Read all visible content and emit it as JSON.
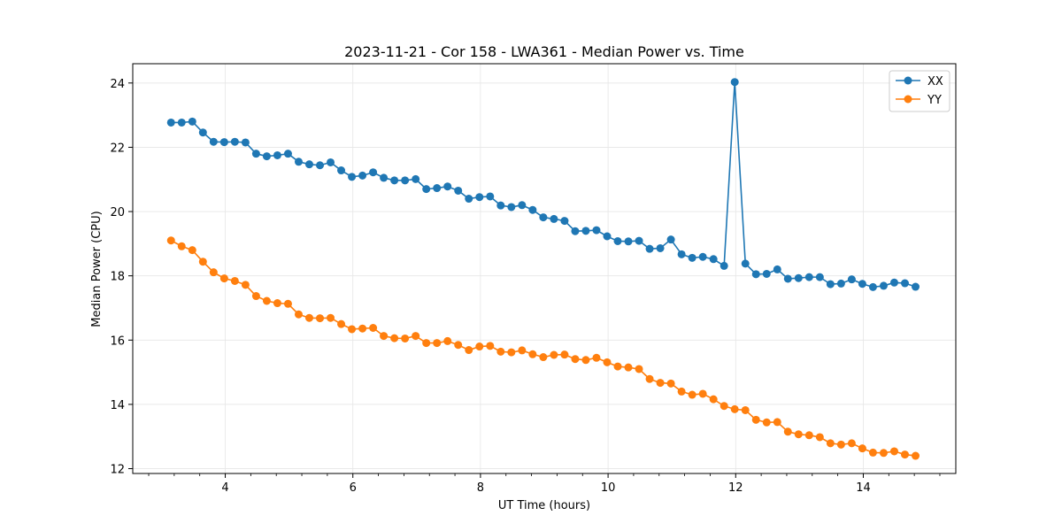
{
  "chart_data": {
    "type": "line",
    "title": "2023-11-21 - Cor 158 - LWA361 - Median Power vs. Time",
    "xlabel": "UT Time (hours)",
    "ylabel": "Median Power (CPU)",
    "xlim": [
      2.55,
      15.45
    ],
    "ylim": [
      11.85,
      24.6
    ],
    "xticks": [
      4,
      6,
      8,
      10,
      12,
      14
    ],
    "xtick_labels": [
      "4",
      "6",
      "8",
      "10",
      "12",
      "14"
    ],
    "yticks": [
      12,
      14,
      16,
      18,
      20,
      22,
      24
    ],
    "ytick_labels": [
      "12",
      "14",
      "16",
      "18",
      "20",
      "22",
      "24"
    ],
    "x_minor_step": 0.4,
    "grid": true,
    "legend_position": "top-right",
    "x_start": 3.15,
    "x_step": 0.1667,
    "series": [
      {
        "name": "XX",
        "color": "#1f77b4",
        "values": [
          22.77,
          22.77,
          22.8,
          22.46,
          22.17,
          22.16,
          22.17,
          22.15,
          21.8,
          21.72,
          21.75,
          21.8,
          21.55,
          21.47,
          21.44,
          21.53,
          21.28,
          21.08,
          21.12,
          21.22,
          21.05,
          20.97,
          20.97,
          21.01,
          20.7,
          20.73,
          20.78,
          20.65,
          20.4,
          20.45,
          20.47,
          20.19,
          20.14,
          20.2,
          20.05,
          19.82,
          19.77,
          19.71,
          19.39,
          19.4,
          19.42,
          19.23,
          19.08,
          19.07,
          19.09,
          18.84,
          18.86,
          19.13,
          18.67,
          18.56,
          18.59,
          18.52,
          18.31,
          24.03,
          18.38,
          18.05,
          18.06,
          18.2,
          17.91,
          17.93,
          17.96,
          17.96,
          17.74,
          17.76,
          17.89,
          17.75,
          17.65,
          17.69,
          17.79,
          17.77,
          17.66
        ]
      },
      {
        "name": "YY",
        "color": "#ff7f0e",
        "values": [
          19.1,
          18.92,
          18.8,
          18.44,
          18.11,
          17.92,
          17.84,
          17.72,
          17.37,
          17.22,
          17.15,
          17.13,
          16.8,
          16.69,
          16.68,
          16.69,
          16.5,
          16.34,
          16.36,
          16.38,
          16.13,
          16.06,
          16.05,
          16.13,
          15.91,
          15.91,
          15.97,
          15.85,
          15.69,
          15.8,
          15.82,
          15.64,
          15.62,
          15.68,
          15.56,
          15.47,
          15.54,
          15.55,
          15.41,
          15.38,
          15.45,
          15.31,
          15.18,
          15.15,
          15.1,
          14.79,
          14.67,
          14.65,
          14.4,
          14.3,
          14.33,
          14.16,
          13.95,
          13.85,
          13.82,
          13.52,
          13.44,
          13.45,
          13.15,
          13.07,
          13.04,
          12.98,
          12.79,
          12.75,
          12.79,
          12.63,
          12.5,
          12.49,
          12.54,
          12.44,
          12.4
        ]
      }
    ]
  }
}
